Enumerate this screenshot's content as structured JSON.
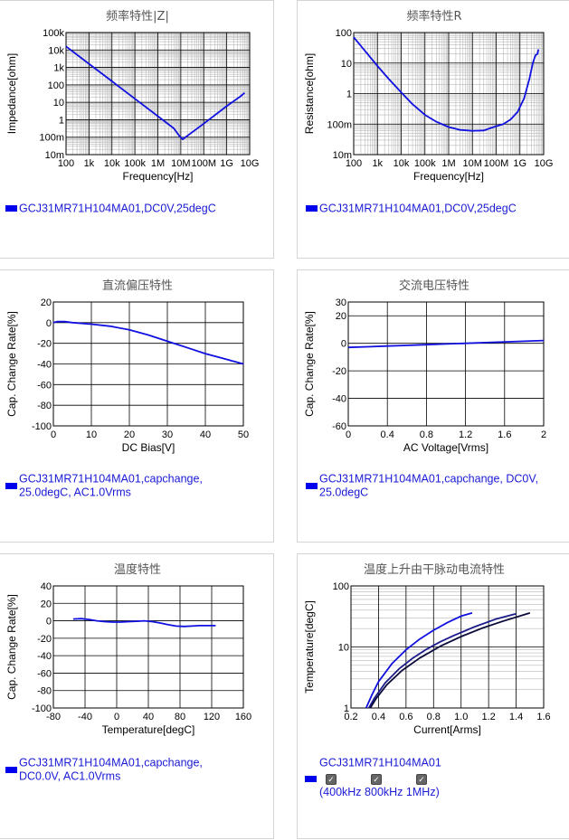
{
  "colors": {
    "series1": "#1010e0",
    "series2": "#1a1a8a",
    "series3": "#0a0a3a",
    "grid": "#000000",
    "minorGrid": "#b8b8b8",
    "panelBorder": "#d4d4d4",
    "legendText": "#1a1ad6",
    "swatch": "#0000ee"
  },
  "legend_prefix": "GCJ31MR71H104MA01",
  "panels": [
    {
      "legend": [
        ",DC0V,25degC"
      ]
    },
    {
      "legend": [
        ",DC0V,25degC"
      ]
    },
    {
      "legend": [
        ",capchange,",
        "25.0degC, AC1.0Vrms"
      ]
    },
    {
      "legend": [
        ",capchange, DC0V,",
        "25.0degC"
      ]
    },
    {
      "legend": [
        ",capchange,",
        "DC0.0V, AC1.0Vrms"
      ]
    },
    {
      "legend": [
        ""
      ],
      "checks": [
        {
          "label": "400kHz",
          "checked": true
        },
        {
          "label": "800kHz",
          "checked": true
        },
        {
          "label": "1MHz",
          "checked": true
        }
      ],
      "open_paren": "(",
      "close_paren": ")"
    }
  ],
  "chart_data": [
    {
      "type": "line",
      "title": "频率特性|Z|",
      "xlabel": "Frequency[Hz]",
      "ylabel": "Impedance[ohm]",
      "xscale": "log",
      "yscale": "log",
      "xlim": [
        100,
        10000000000
      ],
      "ylim": [
        0.01,
        100000
      ],
      "xticks": [
        {
          "v": 100,
          "l": "100"
        },
        {
          "v": 1000,
          "l": "1k"
        },
        {
          "v": 10000,
          "l": "10k"
        },
        {
          "v": 100000,
          "l": "100k"
        },
        {
          "v": 1000000,
          "l": "1M"
        },
        {
          "v": 10000000,
          "l": "10M"
        },
        {
          "v": 100000000,
          "l": "100M"
        },
        {
          "v": 1000000000,
          "l": "1G"
        },
        {
          "v": 10000000000,
          "l": "10G"
        }
      ],
      "yticks": [
        {
          "v": 0.01,
          "l": "10m"
        },
        {
          "v": 0.1,
          "l": "100m"
        },
        {
          "v": 1,
          "l": "1"
        },
        {
          "v": 10,
          "l": "10"
        },
        {
          "v": 100,
          "l": "100"
        },
        {
          "v": 1000,
          "l": "1k"
        },
        {
          "v": 10000,
          "l": "10k"
        },
        {
          "v": 100000,
          "l": "100k"
        }
      ],
      "grid": true,
      "series": [
        {
          "x": [
            100,
            1000,
            10000,
            100000,
            1000000,
            5000000,
            9000000,
            12000000,
            16000000,
            100000000,
            1000000000,
            4000000000,
            6000000000
          ],
          "y": [
            16000,
            1600,
            160,
            16,
            1.6,
            0.32,
            0.11,
            0.075,
            0.1,
            0.6,
            6,
            22,
            35
          ]
        }
      ]
    },
    {
      "type": "line",
      "title": "频率特性R",
      "xlabel": "Frequency[Hz]",
      "ylabel": "Resistance[ohm]",
      "xscale": "log",
      "yscale": "log",
      "xlim": [
        100,
        10000000000
      ],
      "ylim": [
        0.01,
        100
      ],
      "xticks": [
        {
          "v": 100,
          "l": "100"
        },
        {
          "v": 1000,
          "l": "1k"
        },
        {
          "v": 10000,
          "l": "10k"
        },
        {
          "v": 100000,
          "l": "100k"
        },
        {
          "v": 1000000,
          "l": "1M"
        },
        {
          "v": 10000000,
          "l": "10M"
        },
        {
          "v": 100000000,
          "l": "100M"
        },
        {
          "v": 1000000000,
          "l": "1G"
        },
        {
          "v": 10000000000,
          "l": "10G"
        }
      ],
      "yticks": [
        {
          "v": 0.01,
          "l": "10m"
        },
        {
          "v": 0.1,
          "l": "100m"
        },
        {
          "v": 1,
          "l": "1"
        },
        {
          "v": 10,
          "l": "10"
        },
        {
          "v": 100,
          "l": "100"
        }
      ],
      "grid": true,
      "series": [
        {
          "x": [
            100,
            300,
            1000,
            3000,
            10000,
            30000,
            100000,
            300000,
            1000000,
            3000000,
            10000000,
            30000000,
            60000000,
            100000000,
            200000000,
            400000000,
            800000000,
            1500000000,
            2500000000,
            3500000000,
            4500000000,
            5500000000,
            6000000000
          ],
          "y": [
            70,
            25,
            8,
            3,
            1.1,
            0.45,
            0.2,
            0.12,
            0.08,
            0.065,
            0.06,
            0.062,
            0.075,
            0.085,
            0.1,
            0.14,
            0.25,
            0.7,
            3,
            10,
            18,
            20,
            28
          ]
        }
      ]
    },
    {
      "type": "line",
      "title": "直流偏压特性",
      "xlabel": "DC Bias[V]",
      "ylabel": "Cap. Change Rate[%]",
      "xlim": [
        0,
        50
      ],
      "ylim": [
        -100,
        20
      ],
      "xticks": [
        {
          "v": 0,
          "l": "0"
        },
        {
          "v": 10,
          "l": "10"
        },
        {
          "v": 20,
          "l": "20"
        },
        {
          "v": 30,
          "l": "30"
        },
        {
          "v": 40,
          "l": "40"
        },
        {
          "v": 50,
          "l": "50"
        }
      ],
      "yticks": [
        {
          "v": 20,
          "l": "20"
        },
        {
          "v": 0,
          "l": "0"
        },
        {
          "v": -20,
          "l": "-20"
        },
        {
          "v": -40,
          "l": "-40"
        },
        {
          "v": -60,
          "l": "-60"
        },
        {
          "v": -80,
          "l": "-80"
        },
        {
          "v": -100,
          "l": "-100"
        }
      ],
      "grid": true,
      "series": [
        {
          "x": [
            0,
            1,
            3,
            5,
            10,
            15,
            20,
            25,
            30,
            35,
            40,
            45,
            50
          ],
          "y": [
            0,
            1,
            1,
            0,
            -1.5,
            -3.5,
            -7,
            -12,
            -18,
            -24,
            -30,
            -35,
            -40
          ]
        }
      ]
    },
    {
      "type": "line",
      "title": "交流电压特性",
      "xlabel": "AC Voltage[Vrms]",
      "ylabel": "Cap. Change Rate[%]",
      "xlim": [
        0,
        2
      ],
      "ylim": [
        -60,
        30
      ],
      "xticks": [
        {
          "v": 0,
          "l": "0"
        },
        {
          "v": 0.4,
          "l": "0.4"
        },
        {
          "v": 0.8,
          "l": "0.8"
        },
        {
          "v": 1.2,
          "l": "1.2"
        },
        {
          "v": 1.6,
          "l": "1.6"
        },
        {
          "v": 2,
          "l": "2"
        }
      ],
      "yticks": [
        {
          "v": 30,
          "l": "30"
        },
        {
          "v": 20,
          "l": "20"
        },
        {
          "v": 0,
          "l": "0"
        },
        {
          "v": -20,
          "l": "-20"
        },
        {
          "v": -40,
          "l": "-40"
        },
        {
          "v": -60,
          "l": "-60"
        }
      ],
      "grid": true,
      "series": [
        {
          "x": [
            0,
            0.2,
            0.4,
            0.6,
            0.8,
            1.0,
            1.2,
            1.4,
            1.6,
            1.8,
            2.0
          ],
          "y": [
            -3,
            -2.5,
            -2,
            -1.5,
            -1,
            -0.5,
            0,
            0.5,
            1,
            1.5,
            2
          ]
        }
      ]
    },
    {
      "type": "line",
      "title": "温度特性",
      "xlabel": "Temperature[degC]",
      "ylabel": "Cap. Change Rate[%]",
      "xlim": [
        -80,
        160
      ],
      "ylim": [
        -100,
        40
      ],
      "xticks": [
        {
          "v": -80,
          "l": "-80"
        },
        {
          "v": -40,
          "l": "-40"
        },
        {
          "v": 0,
          "l": "0"
        },
        {
          "v": 40,
          "l": "40"
        },
        {
          "v": 80,
          "l": "80"
        },
        {
          "v": 120,
          "l": "120"
        },
        {
          "v": 160,
          "l": "160"
        }
      ],
      "yticks": [
        {
          "v": 40,
          "l": "40"
        },
        {
          "v": 20,
          "l": "20"
        },
        {
          "v": 0,
          "l": "0"
        },
        {
          "v": -20,
          "l": "-20"
        },
        {
          "v": -40,
          "l": "-40"
        },
        {
          "v": -60,
          "l": "-60"
        },
        {
          "v": -80,
          "l": "-80"
        },
        {
          "v": -100,
          "l": "-100"
        }
      ],
      "grid": true,
      "series": [
        {
          "x": [
            -55,
            -45,
            -35,
            -25,
            -15,
            -5,
            5,
            15,
            25,
            35,
            45,
            55,
            65,
            75,
            85,
            95,
            105,
            115,
            125
          ],
          "y": [
            2,
            2.5,
            1.5,
            0,
            -1,
            -1.5,
            -1.5,
            -1,
            -0.5,
            0,
            -1,
            -2.5,
            -4.5,
            -6,
            -6.5,
            -6,
            -5.5,
            -5.5,
            -5.5
          ]
        }
      ]
    },
    {
      "type": "line",
      "title": "温度上升由干脉动电流特性",
      "xlabel": "Current[Arms]",
      "ylabel": "Temperature[degC]",
      "yscale": "log",
      "xlim": [
        0.2,
        1.6
      ],
      "ylim": [
        1,
        100
      ],
      "xticks": [
        {
          "v": 0.2,
          "l": "0.2"
        },
        {
          "v": 0.4,
          "l": "0.4"
        },
        {
          "v": 0.6,
          "l": "0.6"
        },
        {
          "v": 0.8,
          "l": "0.8"
        },
        {
          "v": 1.0,
          "l": "1.0"
        },
        {
          "v": 1.2,
          "l": "1.2"
        },
        {
          "v": 1.4,
          "l": "1.4"
        },
        {
          "v": 1.6,
          "l": "1.6"
        }
      ],
      "yticks": [
        {
          "v": 1,
          "l": "1"
        },
        {
          "v": 10,
          "l": "10"
        },
        {
          "v": 100,
          "l": "100"
        }
      ],
      "grid": true,
      "series": [
        {
          "x": [
            0.31,
            0.35,
            0.4,
            0.5,
            0.6,
            0.7,
            0.8,
            0.9,
            1.0,
            1.08
          ],
          "y": [
            1,
            1.6,
            2.7,
            5.4,
            9,
            13.5,
            18.8,
            25,
            32,
            36
          ]
        },
        {
          "x": [
            0.33,
            0.37,
            0.45,
            0.55,
            0.65,
            0.75,
            0.85,
            0.95,
            1.1,
            1.25,
            1.4
          ],
          "y": [
            1,
            1.45,
            2.6,
            4.4,
            6.6,
            9.2,
            12.2,
            15.5,
            21.5,
            28.5,
            35
          ]
        },
        {
          "x": [
            0.34,
            0.38,
            0.46,
            0.57,
            0.7,
            0.85,
            1.0,
            1.15,
            1.3,
            1.5
          ],
          "y": [
            1,
            1.4,
            2.4,
            4.1,
            6.6,
            10.3,
            14.8,
            20.2,
            26.3,
            36
          ]
        }
      ]
    }
  ]
}
